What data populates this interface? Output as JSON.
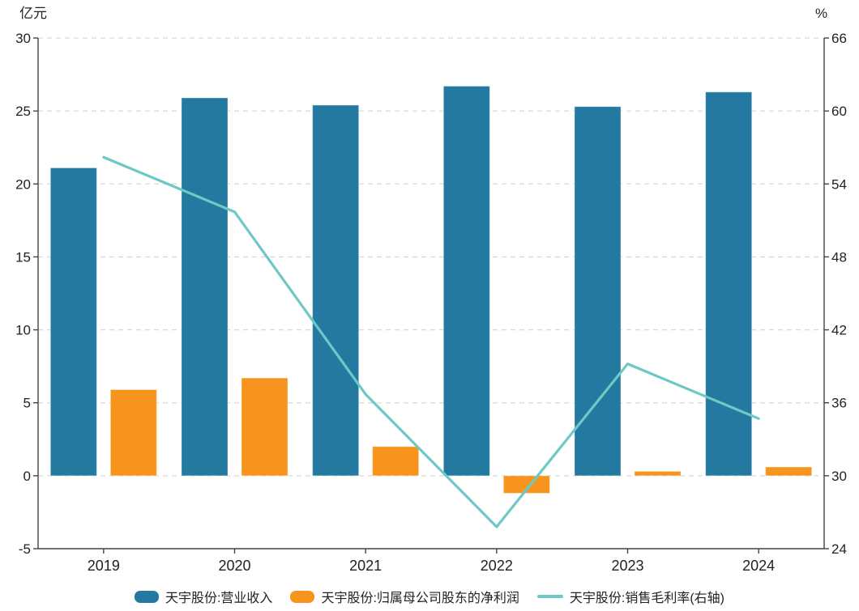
{
  "chart_data": {
    "type": "combo",
    "categories": [
      "2019",
      "2020",
      "2021",
      "2022",
      "2023",
      "2024"
    ],
    "series": [
      {
        "name": "天宇股份:营业收入",
        "id": "revenue",
        "type": "bar",
        "axis": "left",
        "color": "#2379A0",
        "values": [
          21.1,
          25.9,
          25.4,
          26.7,
          25.3,
          26.3
        ]
      },
      {
        "name": "天宇股份:归属母公司股东的净利润",
        "id": "net-profit",
        "type": "bar",
        "axis": "left",
        "color": "#F7941D",
        "values": [
          5.9,
          6.7,
          2.0,
          -1.2,
          0.3,
          0.6
        ]
      },
      {
        "name": "天宇股份:销售毛利率(右轴)",
        "id": "gross-margin",
        "type": "line",
        "axis": "right",
        "color": "#6EC8C3",
        "values": [
          56.2,
          51.7,
          36.7,
          25.8,
          39.2,
          34.7
        ]
      }
    ],
    "left_axis": {
      "title": "亿元",
      "min": -5,
      "max": 30,
      "step": 5,
      "ticks": [
        30,
        25,
        20,
        15,
        10,
        5,
        0,
        -5
      ]
    },
    "right_axis": {
      "title": "%",
      "min": 24,
      "max": 66,
      "step": 6,
      "ticks": [
        66,
        60,
        54,
        48,
        42,
        36,
        30,
        24
      ]
    },
    "grid": true,
    "legend_position": "bottom",
    "style": {
      "axis_color": "#444444",
      "grid_color": "#d9d9d9",
      "text_color": "#222222",
      "background": "#ffffff"
    }
  }
}
